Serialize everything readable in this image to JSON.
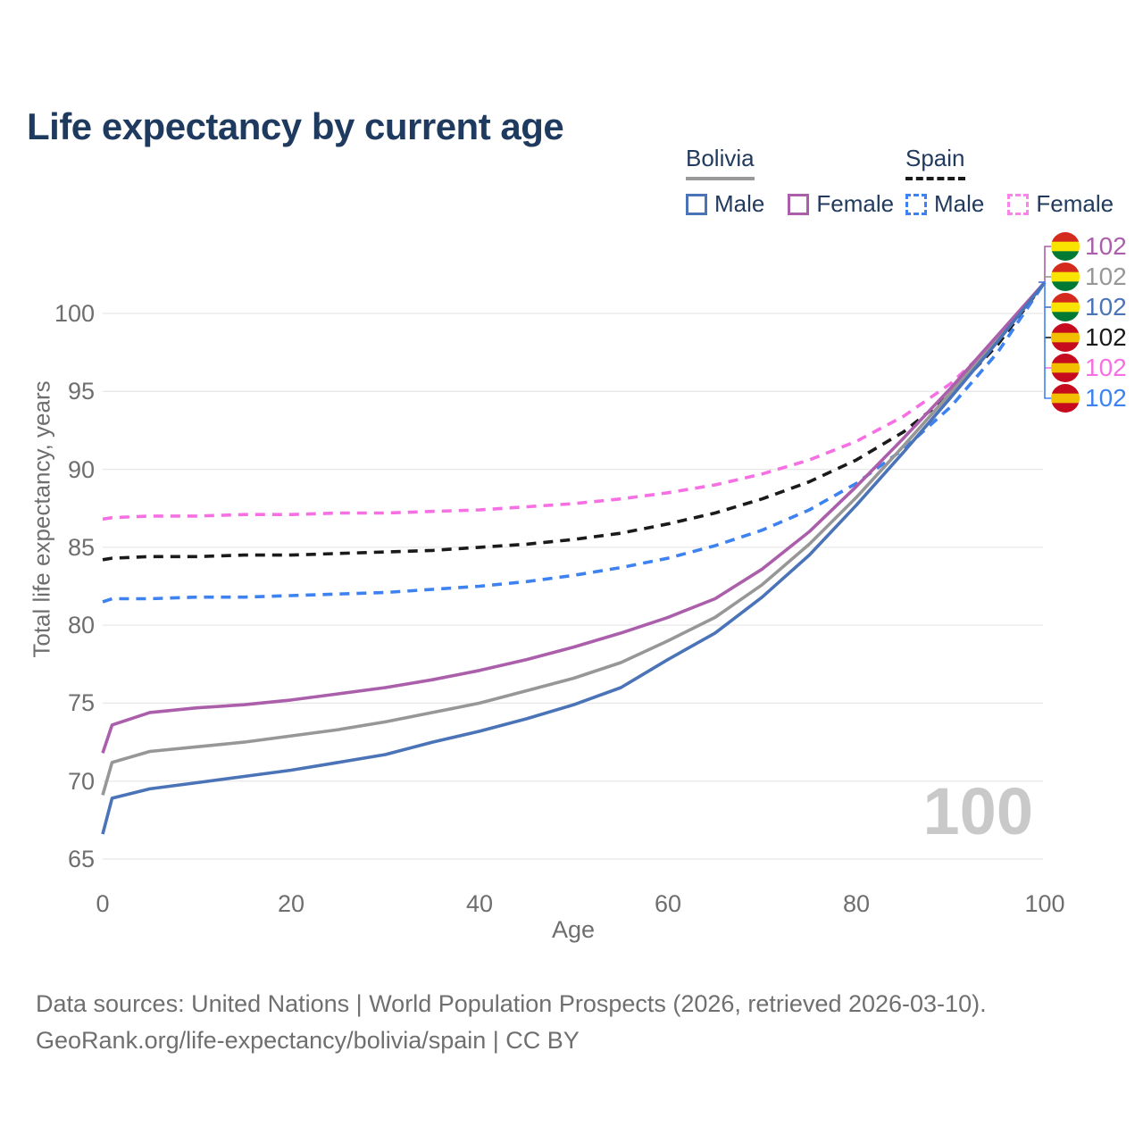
{
  "title": "Life expectancy by current age",
  "legend": {
    "groups": [
      {
        "country": "Bolivia",
        "line_style": "solid",
        "underline_color": "#999999",
        "items": [
          {
            "label": "Male",
            "color": "#4a73b8"
          },
          {
            "label": "Female",
            "color": "#ab5fab"
          }
        ]
      },
      {
        "country": "Spain",
        "line_style": "dashed",
        "underline_color": "#1a1a1a",
        "items": [
          {
            "label": "Male",
            "color": "#3d82f0"
          },
          {
            "label": "Female",
            "color": "#fb84ea"
          }
        ]
      }
    ]
  },
  "chart_data": {
    "type": "line",
    "title": "Life expectancy by current age",
    "xlabel": "Age",
    "ylabel": "Total life expectancy, years",
    "xlim": [
      0,
      100
    ],
    "ylim": [
      65,
      103
    ],
    "xticks": [
      0,
      20,
      40,
      60,
      80,
      100
    ],
    "yticks": [
      65,
      70,
      75,
      80,
      85,
      90,
      95,
      100
    ],
    "grid": "horizontal-only",
    "legend_position": "top-right",
    "x": [
      0,
      1,
      5,
      10,
      15,
      20,
      25,
      30,
      35,
      40,
      45,
      50,
      55,
      60,
      65,
      70,
      75,
      80,
      85,
      90,
      95,
      100
    ],
    "series": [
      {
        "name": "Spain Both sexes",
        "country": "Spain",
        "sex": "Both",
        "color": "#1a1a1a",
        "dashed": true,
        "values": [
          84.2,
          84.3,
          84.4,
          84.4,
          84.5,
          84.5,
          84.6,
          84.7,
          84.8,
          85.0,
          85.2,
          85.5,
          85.9,
          86.5,
          87.2,
          88.1,
          89.2,
          90.6,
          92.4,
          94.8,
          98.0,
          102
        ]
      },
      {
        "name": "Spain Female",
        "country": "Spain",
        "sex": "Female",
        "color": "#f670e4",
        "dashed": true,
        "values": [
          86.8,
          86.9,
          87.0,
          87.0,
          87.1,
          87.1,
          87.2,
          87.2,
          87.3,
          87.4,
          87.6,
          87.8,
          88.1,
          88.5,
          89.0,
          89.7,
          90.6,
          91.8,
          93.4,
          95.5,
          98.3,
          102
        ]
      },
      {
        "name": "Spain Male",
        "country": "Spain",
        "sex": "Male",
        "color": "#3d82f0",
        "dashed": true,
        "values": [
          81.5,
          81.7,
          81.7,
          81.8,
          81.8,
          81.9,
          82.0,
          82.1,
          82.3,
          82.5,
          82.8,
          83.2,
          83.7,
          84.3,
          85.1,
          86.1,
          87.4,
          89.1,
          91.3,
          94.0,
          97.5,
          102
        ]
      },
      {
        "name": "Bolivia Both sexes",
        "country": "Bolivia",
        "sex": "Both",
        "color": "#979797",
        "dashed": false,
        "values": [
          69.1,
          71.2,
          71.9,
          72.2,
          72.5,
          72.9,
          73.3,
          73.8,
          74.4,
          75.0,
          75.8,
          76.6,
          77.6,
          79.0,
          80.5,
          82.6,
          85.2,
          88.2,
          91.5,
          94.9,
          98.4,
          102
        ]
      },
      {
        "name": "Bolivia Female",
        "country": "Bolivia",
        "sex": "Female",
        "color": "#ab5fab",
        "dashed": false,
        "values": [
          71.8,
          73.6,
          74.4,
          74.7,
          74.9,
          75.2,
          75.6,
          76.0,
          76.5,
          77.1,
          77.8,
          78.6,
          79.5,
          80.5,
          81.7,
          83.6,
          86.0,
          88.9,
          92.0,
          95.2,
          98.6,
          102
        ]
      },
      {
        "name": "Bolivia Male",
        "country": "Bolivia",
        "sex": "Male",
        "color": "#4a73b8",
        "dashed": false,
        "values": [
          66.6,
          68.9,
          69.5,
          69.9,
          70.3,
          70.7,
          71.2,
          71.7,
          72.5,
          73.2,
          74.0,
          74.9,
          76.0,
          77.8,
          79.5,
          81.8,
          84.5,
          87.7,
          91.1,
          94.6,
          98.2,
          102
        ]
      }
    ]
  },
  "end_labels": [
    {
      "value": "102",
      "series": "Bolivia Female",
      "flag": "bolivia",
      "color": "#ab5fab"
    },
    {
      "value": "102",
      "series": "Bolivia Both sexes",
      "flag": "bolivia",
      "color": "#979797"
    },
    {
      "value": "102",
      "series": "Bolivia Male",
      "flag": "bolivia",
      "color": "#4a73b8"
    },
    {
      "value": "102",
      "series": "Spain Both sexes",
      "flag": "spain",
      "color": "#1a1a1a"
    },
    {
      "value": "102",
      "series": "Spain Female",
      "flag": "spain",
      "color": "#f670e4"
    },
    {
      "value": "102",
      "series": "Spain Male",
      "flag": "spain",
      "color": "#3d82f0"
    }
  ],
  "flags": {
    "bolivia": [
      "#d52b1e",
      "#f9e300",
      "#007934"
    ],
    "spain": [
      "#c60b1e",
      "#f1bf00",
      "#c60b1e"
    ]
  },
  "watermark": {
    "current_age": "100"
  },
  "footer": {
    "line1": "Data sources: United Nations | World Population Prospects (2026, retrieved 2026-03-10).",
    "line2": "GeoRank.org/life-expectancy/bolivia/spain | CC BY"
  },
  "colors": {
    "title_text": "#1f3a5f",
    "axis_text": "#6e6e6e",
    "gridline": "#e8e8e8",
    "watermark": "#c9c9c9"
  }
}
